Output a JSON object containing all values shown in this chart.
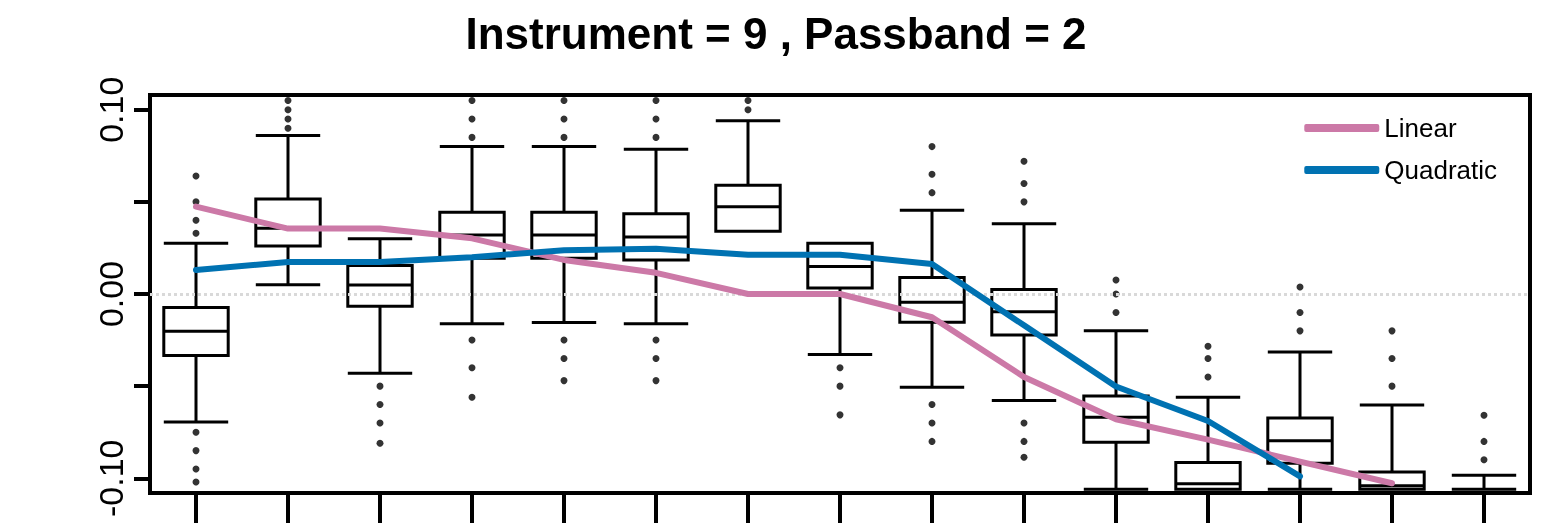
{
  "chart_data": {
    "type": "box",
    "title": "Instrument = 9 , Passband = 2",
    "color": "#000000",
    "categories": [
      null,
      null,
      null,
      null,
      null,
      null,
      null,
      null,
      null,
      null,
      null,
      null,
      null,
      null,
      null
    ],
    "boxes": [
      {
        "low": -0.0695,
        "q1": -0.0334,
        "median": -0.0202,
        "q3": -0.0073,
        "high": 0.0276,
        "outliers": [
          0.064,
          0.05,
          0.04,
          0.033,
          -0.075,
          -0.085,
          -0.095,
          -0.102
        ]
      },
      {
        "low": 0.005,
        "q1": 0.0261,
        "median": 0.0357,
        "q3": 0.0516,
        "high": 0.086,
        "outliers": [
          0.09,
          0.095,
          0.1,
          0.105
        ]
      },
      {
        "low": -0.043,
        "q1": -0.0067,
        "median": 0.0049,
        "q3": 0.0155,
        "high": 0.03,
        "outliers": [
          -0.05,
          -0.06,
          -0.07,
          -0.081
        ]
      },
      {
        "low": -0.0162,
        "q1": 0.0194,
        "median": 0.032,
        "q3": 0.0444,
        "high": 0.08,
        "outliers": [
          0.085,
          0.095,
          0.105,
          -0.025,
          -0.04,
          -0.056
        ]
      },
      {
        "low": -0.0154,
        "q1": 0.0194,
        "median": 0.032,
        "q3": 0.0444,
        "high": 0.08,
        "outliers": [
          0.085,
          0.095,
          0.105,
          -0.025,
          -0.035,
          -0.047
        ]
      },
      {
        "low": -0.0162,
        "q1": 0.0184,
        "median": 0.031,
        "q3": 0.0435,
        "high": 0.0786,
        "outliers": [
          0.085,
          0.095,
          0.105,
          -0.025,
          -0.035,
          -0.047
        ]
      },
      {
        "low": 0.034,
        "q1": 0.034,
        "median": 0.0474,
        "q3": 0.059,
        "high": 0.094,
        "outliers": [
          0.1,
          0.105
        ]
      },
      {
        "low": -0.0328,
        "q1": 0.0033,
        "median": 0.0149,
        "q3": 0.0276,
        "high": 0.0276,
        "outliers": [
          -0.04,
          -0.05,
          -0.0656
        ]
      },
      {
        "low": -0.0506,
        "q1": -0.0153,
        "median": -0.0045,
        "q3": 0.009,
        "high": 0.0454,
        "outliers": [
          0.055,
          0.065,
          0.08,
          -0.06,
          -0.07,
          -0.08
        ]
      },
      {
        "low": -0.0578,
        "q1": -0.0222,
        "median": -0.0097,
        "q3": 0.0024,
        "high": 0.0381,
        "outliers": [
          0.05,
          0.06,
          0.072,
          -0.07,
          -0.08,
          -0.0886
        ]
      },
      {
        "low": -0.106,
        "q1": -0.0804,
        "median": -0.0669,
        "q3": -0.0554,
        "high": -0.02,
        "outliers": [
          -0.01,
          0.0,
          0.0076
        ]
      },
      {
        "low": -0.106,
        "q1": -0.106,
        "median": -0.103,
        "q3": -0.0914,
        "high": -0.056,
        "outliers": [
          -0.045,
          -0.035,
          -0.0284
        ]
      },
      {
        "low": -0.106,
        "q1": -0.0918,
        "median": -0.0797,
        "q3": -0.0673,
        "high": -0.0315,
        "outliers": [
          -0.02,
          -0.01,
          0.0038
        ]
      },
      {
        "low": -0.106,
        "q1": -0.106,
        "median": -0.104,
        "q3": -0.0966,
        "high": -0.0602,
        "outliers": [
          -0.05,
          -0.035,
          -0.02
        ]
      },
      {
        "low": -0.106,
        "q1": -0.106,
        "median": -0.106,
        "q3": -0.106,
        "high": -0.0984,
        "outliers": [
          -0.09,
          -0.08,
          -0.0658
        ]
      }
    ],
    "series": [
      {
        "type": "line",
        "name": "Linear",
        "color": "#cc79a7",
        "values": [
          0.0474,
          0.0355,
          0.0355,
          0.0302,
          0.0185,
          0.0115,
          0.0,
          0.0,
          -0.0126,
          -0.045,
          -0.068,
          -0.079,
          -0.091,
          -0.1027,
          null
        ]
      },
      {
        "type": "line",
        "name": "Quadratic",
        "color": "#0072b2",
        "values": [
          0.013,
          0.0174,
          0.0174,
          0.02,
          0.0238,
          0.0245,
          0.0213,
          0.0213,
          0.0163,
          -0.017,
          -0.0502,
          -0.0689,
          -0.099,
          null,
          null
        ]
      }
    ],
    "ylim": [
      -0.108,
      0.108
    ],
    "yticks": [
      {
        "value": -0.1,
        "label": "-0.10"
      },
      {
        "value": -0.05,
        "label": null
      },
      {
        "value": 0,
        "label": "0.00"
      },
      {
        "value": 0.05,
        "label": null
      },
      {
        "value": 0.1,
        "label": "0.10"
      }
    ],
    "ref_lines": [
      {
        "axis": "y",
        "value": 0,
        "color": "#d9d9d9",
        "line_style": "dotted"
      }
    ],
    "tick_labels": "y",
    "marker": "none",
    "legend": "top right"
  }
}
